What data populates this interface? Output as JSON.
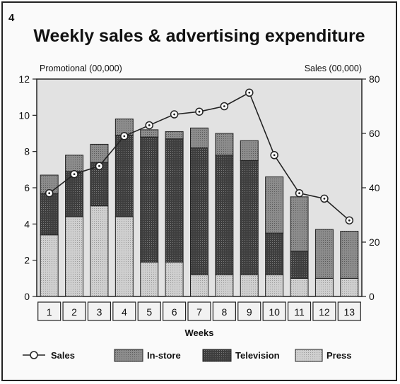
{
  "figure_number": "4",
  "chart_data": {
    "type": "bar",
    "title": "Weekly sales & advertising expenditure",
    "xlabel": "Weeks",
    "ylabel_left": "Promotional (00,000)",
    "ylabel_right": "Sales (00,000)",
    "categories": [
      "1",
      "2",
      "3",
      "4",
      "5",
      "6",
      "7",
      "8",
      "9",
      "10",
      "11",
      "12",
      "13"
    ],
    "ylim_left": [
      0,
      12
    ],
    "yticks_left": [
      0,
      2,
      4,
      6,
      8,
      10,
      12
    ],
    "ylim_right": [
      0,
      80
    ],
    "yticks_right": [
      0,
      20,
      40,
      60,
      80
    ],
    "stacked": true,
    "series": [
      {
        "name": "Press",
        "axis": "left",
        "values": [
          3.4,
          4.4,
          5.0,
          4.4,
          1.9,
          1.9,
          1.2,
          1.2,
          1.2,
          1.2,
          1.0,
          1.0,
          1.0
        ]
      },
      {
        "name": "Television",
        "axis": "left",
        "values": [
          2.3,
          2.5,
          2.4,
          4.5,
          6.9,
          6.8,
          7.0,
          6.6,
          6.3,
          2.3,
          1.5,
          0,
          0
        ]
      },
      {
        "name": "In-store",
        "axis": "left",
        "values": [
          1.0,
          0.9,
          1.0,
          0.9,
          0.4,
          0.4,
          1.1,
          1.2,
          1.1,
          3.1,
          3.0,
          2.7,
          2.6
        ]
      },
      {
        "name": "Sales",
        "axis": "right",
        "type": "line",
        "values": [
          38,
          45,
          48,
          59,
          63,
          67,
          68,
          70,
          75,
          52,
          38,
          36,
          28
        ]
      }
    ],
    "legend": [
      "Sales",
      "In-store",
      "Television",
      "Press"
    ],
    "legend_position": "bottom",
    "colors": {
      "press": "#c9c9c9",
      "television": "#4a4a4a",
      "instore": "#8a8a8a",
      "plot_bg": "#e2e2e2",
      "line": "#222222"
    }
  }
}
